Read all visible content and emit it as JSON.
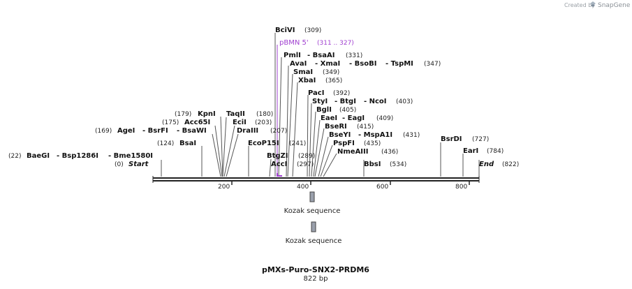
{
  "credit": {
    "prefix": "Created by",
    "brand": "SnapGene"
  },
  "map": {
    "title": "pMXs-Puro-SNX2-PRDM6",
    "length_label": "822 bp",
    "start_label": "Start",
    "start_pos": "(0)",
    "end_label": "End",
    "end_pos": "(822)",
    "ticks": [
      "200",
      "400",
      "600",
      "800"
    ]
  },
  "sites": {
    "bcivi": {
      "name": "BciVI",
      "pos": "(309)"
    },
    "pmli": {
      "name": "PmlI",
      "alt": "- BsaAI",
      "pos": "(331)"
    },
    "avai": {
      "name": "AvaI",
      "alt1": "- XmaI",
      "alt2": "- BsoBI",
      "alt3": "- TspMI",
      "pos": "(347)"
    },
    "smai": {
      "name": "SmaI",
      "pos": "(349)"
    },
    "xbai": {
      "name": "XbaI",
      "pos": "(365)"
    },
    "paci": {
      "name": "PacI",
      "pos": "(392)"
    },
    "styi": {
      "name": "StyI",
      "alt1": "- BtgI",
      "alt2": "- NcoI",
      "pos": "(403)"
    },
    "bgli": {
      "name": "BglI",
      "pos": "(405)"
    },
    "eaei": {
      "name": "EaeI",
      "alt": "- EagI",
      "pos": "(409)"
    },
    "bseri": {
      "name": "BseRI",
      "pos": "(415)"
    },
    "bseyi": {
      "name": "BseYI",
      "alt": "- MspA1I",
      "pos": "(431)"
    },
    "pspfi": {
      "name": "PspFI",
      "pos": "(435)"
    },
    "nmeaiii": {
      "name": "NmeAIII",
      "pos": "(436)"
    },
    "bbsi": {
      "name": "BbsI",
      "pos": "(534)"
    },
    "bsrdi": {
      "name": "BsrDI",
      "pos": "(727)"
    },
    "eari": {
      "name": "EarI",
      "pos": "(784)"
    },
    "kpni": {
      "pos": "(179)",
      "name": "KpnI"
    },
    "acc65i": {
      "pos": "(175)",
      "name": "Acc65I"
    },
    "agei": {
      "pos": "(169)",
      "name": "AgeI",
      "alt1": "- BsrFI",
      "alt2": "- BsaWI"
    },
    "bsai": {
      "pos": "(124)",
      "name": "BsaI"
    },
    "baegi": {
      "pos": "(22)",
      "name": "BaeGI",
      "alt1": "- Bsp1286I",
      "alt2": "- Bme1580I"
    },
    "taqii": {
      "name": "TaqII",
      "pos": "(180)"
    },
    "ecii": {
      "name": "EciI",
      "pos": "(203)"
    },
    "draiii": {
      "name": "DraIII",
      "pos": "(207)"
    },
    "ecop15i": {
      "name": "EcoP15I",
      "pos": "(241)"
    },
    "btgzi": {
      "name": "BtgZI",
      "pos": "(289)"
    },
    "acci": {
      "name": "AccI",
      "pos": "(297)"
    }
  },
  "primer": {
    "name": "pBMN 5'",
    "range": "(311 .. 327)"
  },
  "features": [
    {
      "name": "Kozak sequence"
    },
    {
      "name": "Kozak sequence"
    }
  ],
  "colors": {
    "primer": "#a040d0",
    "feature_fill": "#9aa0ac",
    "backbone": "#222222"
  }
}
